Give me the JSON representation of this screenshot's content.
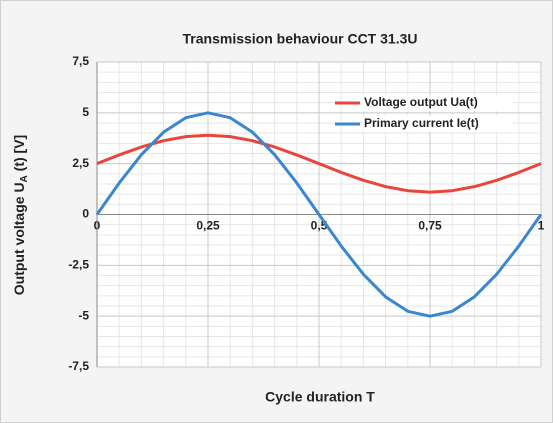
{
  "chart_data": {
    "type": "line",
    "title": "Transmission behaviour CCT 31.3U",
    "xlabel": "Cycle duration T",
    "ylabel": {
      "text": "Output voltage U",
      "subscript": "A",
      "suffix": " (t) [V]"
    },
    "x": [
      0,
      0.05,
      0.1,
      0.15,
      0.2,
      0.25,
      0.3,
      0.35,
      0.4,
      0.45,
      0.5,
      0.55,
      0.6,
      0.65,
      0.7,
      0.75,
      0.8,
      0.85,
      0.9,
      0.95,
      1
    ],
    "series": [
      {
        "name": "Voltage output Ua(t)",
        "color": "#e8453c",
        "values": [
          2.5,
          2.93,
          3.32,
          3.63,
          3.83,
          3.9,
          3.83,
          3.63,
          3.32,
          2.93,
          2.5,
          2.07,
          1.68,
          1.37,
          1.17,
          1.1,
          1.17,
          1.37,
          1.68,
          2.07,
          2.5
        ]
      },
      {
        "name": "Primary current Ie(t)",
        "color": "#3b86cf",
        "values": [
          0,
          1.55,
          2.94,
          4.05,
          4.76,
          5,
          4.76,
          4.05,
          2.94,
          1.55,
          0,
          -1.55,
          -2.94,
          -4.05,
          -4.76,
          -5,
          -4.76,
          -4.05,
          -2.94,
          -1.55,
          0
        ]
      }
    ],
    "xlim": [
      0,
      1
    ],
    "xticks": [
      0,
      {
        "value": 0.25,
        "label": "0,25"
      },
      {
        "value": 0.5,
        "label": "0,5"
      },
      {
        "value": 0.75,
        "label": "0,75"
      },
      1
    ],
    "ylim": [
      -7.5,
      7.5
    ],
    "yticks": [
      {
        "value": -7.5,
        "label": "-7,5"
      },
      -5,
      {
        "value": -2.5,
        "label": "-2,5"
      },
      0,
      {
        "value": 2.5,
        "label": "2,5"
      },
      5,
      {
        "value": 7.5,
        "label": "7,5"
      }
    ],
    "grid": true,
    "minor_grid": true,
    "legend": "upper right"
  }
}
